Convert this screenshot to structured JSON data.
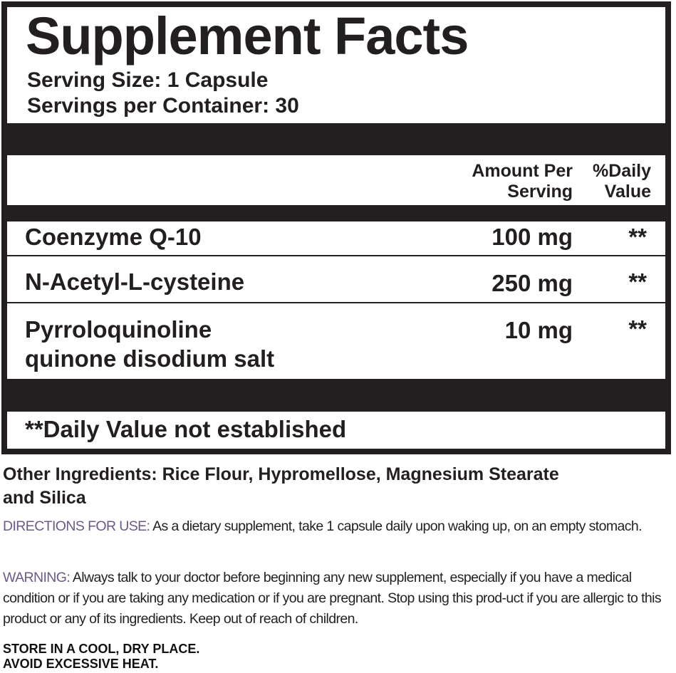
{
  "label": {
    "title": "Supplement Facts",
    "serving_size": "Serving Size: 1 Capsule",
    "servings_per_container": "Servings per Container: 30",
    "header": {
      "amount_line1": "Amount Per",
      "amount_line2": "Serving",
      "dv_line1": "%Daily",
      "dv_line2": "Value"
    },
    "rows": [
      {
        "name": "Coenzyme Q-10",
        "amount": "100 mg",
        "dv": "**"
      },
      {
        "name": "N-Acetyl-L-cysteine",
        "amount": "250 mg",
        "dv": "**"
      },
      {
        "name_line1": "Pyrroloquinoline",
        "name_line2": "quinone disodium salt",
        "amount": "10 mg",
        "dv": "**"
      }
    ],
    "footnote": "**Daily Value not established"
  },
  "other_ingredients": {
    "line1": "Other Ingredients: Rice Flour, Hypromellose, Magnesium Stearate",
    "line2": "and Silica"
  },
  "directions": {
    "label": "DIRECTIONS FOR USE:",
    "text": " As a dietary supplement, take 1 capsule daily upon waking up, on an empty stomach."
  },
  "warning": {
    "label": "WARNING:",
    "text": " Always talk to your doctor before beginning any new supplement, especially if you have a medical condition or if you are taking any medication or if you are pregnant. Stop using this prod-uct if you are allergic to this product or any of its ingredients. Keep out of reach of children."
  },
  "storage": {
    "line1": "STORE IN A COOL, DRY PLACE.",
    "line2": "AVOID EXCESSIVE HEAT."
  },
  "colors": {
    "ink": "#231f20",
    "accent": "#6b5a8a"
  }
}
